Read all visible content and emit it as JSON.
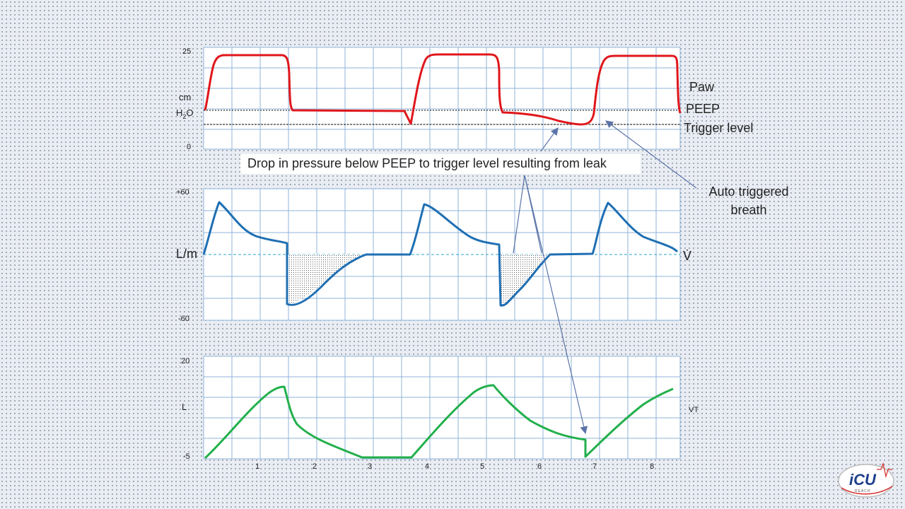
{
  "paw_panel": {
    "y_top_tick": "25",
    "y_bottom_tick": "0",
    "unit_line1": "cm",
    "unit_line2": "H",
    "unit_sub": "2",
    "unit_line3": "O",
    "signal_label": "Paw",
    "peep_label": "PEEP",
    "trigger_label": "Trigger level"
  },
  "flow_panel": {
    "y_top_tick": "+60",
    "y_bottom_tick": "-60",
    "unit": "L/m",
    "signal_label": "V̇"
  },
  "vt_panel": {
    "y_top_tick": "20",
    "y_bottom_tick": "-5",
    "unit": "L",
    "signal_label": "VT"
  },
  "x_ticks": [
    "1",
    "2",
    "3",
    "4",
    "5",
    "6",
    "7",
    "8"
  ],
  "annotations": {
    "drop_text": "Drop in pressure below PEEP to trigger level resulting from leak",
    "auto_line1": "Auto triggered",
    "auto_line2": "breath"
  },
  "logo": {
    "text": "iCU",
    "subtext": "REACH"
  },
  "colors": {
    "pressure": "#e0161b",
    "flow": "#1f6fb3",
    "volume": "#22b04b",
    "grid": "#8fb3d9",
    "arrow": "#5a73a8"
  }
}
